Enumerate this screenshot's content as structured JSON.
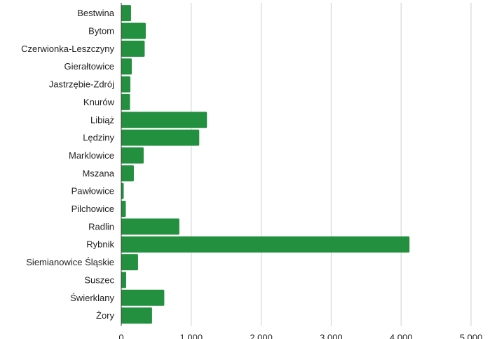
{
  "chart_data": {
    "type": "bar",
    "orientation": "horizontal",
    "categories": [
      "Bestwina",
      "Bytom",
      "Czerwionka-Leszczyny",
      "Gierałtowice",
      "Jastrzębie-Zdrój",
      "Knurów",
      "Libiąż",
      "Lędziny",
      "Marklowice",
      "Mszana",
      "Pawłowice",
      "Pilchowice",
      "Radlin",
      "Rybnik",
      "Siemianowice Śląskie",
      "Suszec",
      "Świerklany",
      "Żory"
    ],
    "values": [
      140,
      350,
      335,
      150,
      130,
      125,
      1225,
      1115,
      320,
      180,
      35,
      65,
      830,
      4120,
      240,
      70,
      615,
      440
    ],
    "xlim": [
      0,
      5000
    ],
    "xticks": [
      0,
      1000,
      2000,
      3000,
      4000,
      5000
    ],
    "xtick_labels": [
      "0",
      "1,000",
      "2,000",
      "3,000",
      "4,000",
      "5,000"
    ],
    "title": "",
    "xlabel": "",
    "ylabel": "",
    "grid": "vertical",
    "bar_color": "#23903f"
  }
}
